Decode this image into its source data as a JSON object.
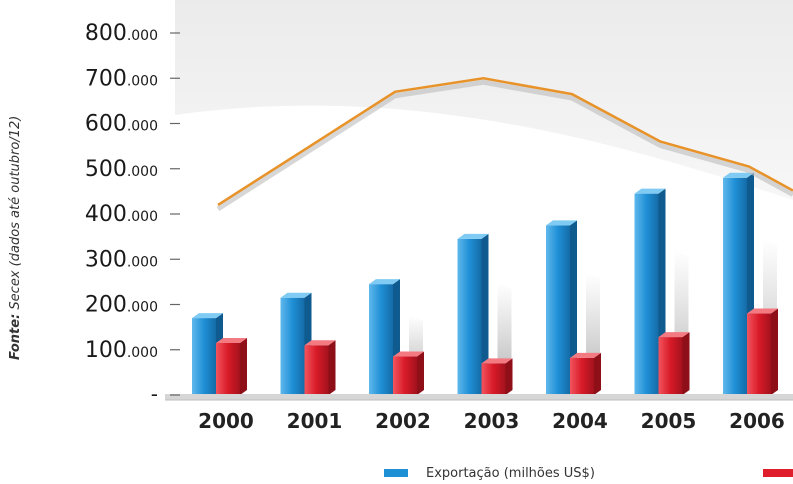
{
  "source": {
    "label": "Fonte:",
    "text": " Secex (dados até outubro/12)"
  },
  "chart_data": {
    "type": "bar",
    "categories": [
      "2000",
      "2001",
      "2002",
      "2003",
      "2004",
      "2005",
      "2006"
    ],
    "y_ticks": [
      {
        "value": 0,
        "label": "-"
      },
      {
        "value": 100000,
        "label": "100.000"
      },
      {
        "value": 200000,
        "label": "200.000"
      },
      {
        "value": 300000,
        "label": "300.000"
      },
      {
        "value": 400000,
        "label": "400.000"
      },
      {
        "value": 500000,
        "label": "500.000"
      },
      {
        "value": 600000,
        "label": "600.000"
      },
      {
        "value": 700000,
        "label": "700.000"
      },
      {
        "value": 800000,
        "label": "800.000"
      }
    ],
    "ylim": [
      0,
      800000
    ],
    "series": [
      {
        "name": "Exportação (milhões US$)",
        "type": "bar",
        "color": "#1f8fd6",
        "values": [
          170000,
          215000,
          245000,
          345000,
          375000,
          445000,
          480000
        ]
      },
      {
        "name": "",
        "type": "bar",
        "color": "#e01e2b",
        "values": [
          115000,
          110000,
          85000,
          70000,
          82000,
          128000,
          180000
        ]
      },
      {
        "name": "",
        "type": "line",
        "color": "#e8932a",
        "values": [
          420000,
          545000,
          670000,
          700000,
          665000,
          560000,
          505000
        ]
      }
    ],
    "legend": "bottom",
    "grid": false
  }
}
